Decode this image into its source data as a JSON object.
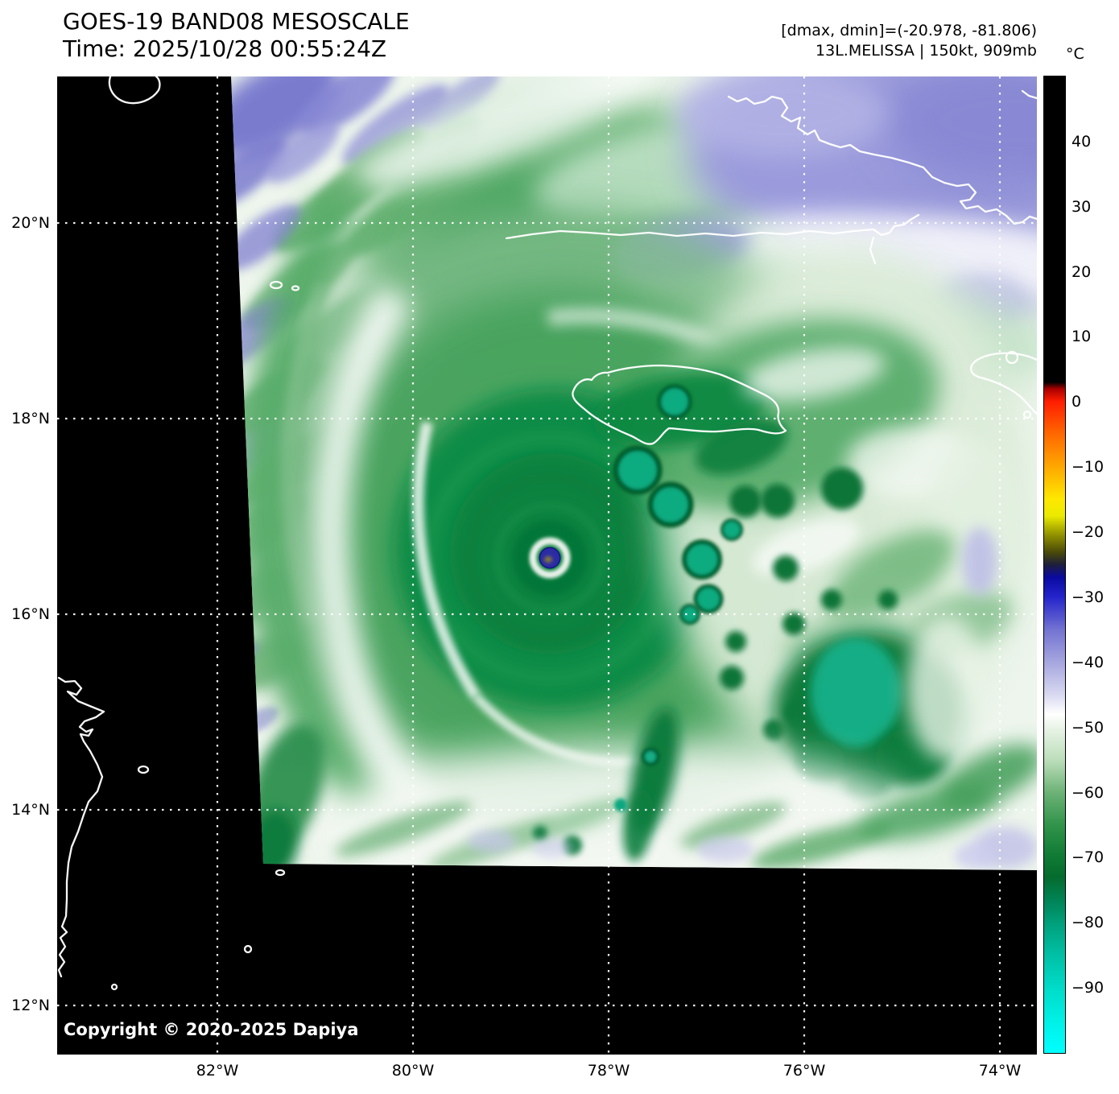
{
  "header": {
    "product_title": "GOES-19 BAND08 MESOSCALE",
    "time_label": "Time: 2025/10/28 00:55:24Z",
    "dmax_dmin_label": "[dmax, dmin]=(-20.978, -81.806)",
    "storm_info_label": "13L.MELISSA | 150kt, 909mb"
  },
  "colorbar": {
    "unit_label": "°C",
    "range_c": [
      50,
      -100
    ],
    "tick_values": [
      40,
      30,
      20,
      10,
      0,
      -10,
      -20,
      -30,
      -40,
      -50,
      -60,
      -70,
      -80,
      -90
    ],
    "tick_labels": [
      "40",
      "30",
      "20",
      "10",
      "0",
      "−10",
      "−20",
      "−30",
      "−40",
      "−50",
      "−60",
      "−70",
      "−80",
      "−90"
    ],
    "stops": [
      {
        "pct": 0,
        "color": "#000000"
      },
      {
        "pct": 31.3,
        "color": "#000000"
      },
      {
        "pct": 32.0,
        "color": "#aa0000"
      },
      {
        "pct": 33.3,
        "color": "#ff1e00"
      },
      {
        "pct": 36.7,
        "color": "#ff6a00"
      },
      {
        "pct": 40.0,
        "color": "#ffa800"
      },
      {
        "pct": 43.3,
        "color": "#ffe800"
      },
      {
        "pct": 45.0,
        "color": "#eaea00"
      },
      {
        "pct": 46.7,
        "color": "#9c9c00"
      },
      {
        "pct": 48.7,
        "color": "#4a4a08"
      },
      {
        "pct": 50.0,
        "color": "#1e1e3c"
      },
      {
        "pct": 51.3,
        "color": "#0a0aa0"
      },
      {
        "pct": 53.3,
        "color": "#2424cc"
      },
      {
        "pct": 56.7,
        "color": "#7474d2"
      },
      {
        "pct": 60.0,
        "color": "#a6a6e0"
      },
      {
        "pct": 63.3,
        "color": "#d8d8f0"
      },
      {
        "pct": 65.3,
        "color": "#ffffff"
      },
      {
        "pct": 66.7,
        "color": "#e9f4e7"
      },
      {
        "pct": 70.0,
        "color": "#bcdeba"
      },
      {
        "pct": 73.3,
        "color": "#6db277"
      },
      {
        "pct": 76.7,
        "color": "#309349"
      },
      {
        "pct": 80.0,
        "color": "#0e7a33"
      },
      {
        "pct": 82.0,
        "color": "#056b2e"
      },
      {
        "pct": 84.7,
        "color": "#00875c"
      },
      {
        "pct": 86.7,
        "color": "#00a07b"
      },
      {
        "pct": 90.0,
        "color": "#00c0a6"
      },
      {
        "pct": 93.3,
        "color": "#00dbc8"
      },
      {
        "pct": 96.7,
        "color": "#00f0e6"
      },
      {
        "pct": 100,
        "color": "#00ffff"
      }
    ]
  },
  "axes": {
    "lat_values": [
      20,
      18,
      16,
      14,
      12
    ],
    "lat_labels": [
      "20°N",
      "18°N",
      "16°N",
      "14°N",
      "12°N"
    ],
    "lon_values": [
      82,
      80,
      78,
      76,
      74
    ],
    "lon_labels": [
      "82°W",
      "80°W",
      "78°W",
      "76°W",
      "74°W"
    ]
  },
  "map": {
    "copyright_label": "Copyright © 2020-2025 Dapiya",
    "features": [
      "cuba-coastline",
      "isla-de-la-juventud-coastline",
      "cayman-islands-coastline",
      "jamaica-coastline",
      "haiti-sw-peninsula-coastline",
      "honduras-nicaragua-coastline",
      "offshore-islets",
      "hurricane-melissa-eye",
      "lat-lon-gridlines"
    ],
    "colors": {
      "no_data_background": "#000000",
      "gridline": "#ffffff",
      "coastline": "#ffffff",
      "cold_cloud_green": "#0e8c45",
      "overshoot_teal": "#0cab80",
      "warm_lavender": "#9a9adc",
      "eye_navy": "#2b2ba4"
    }
  }
}
